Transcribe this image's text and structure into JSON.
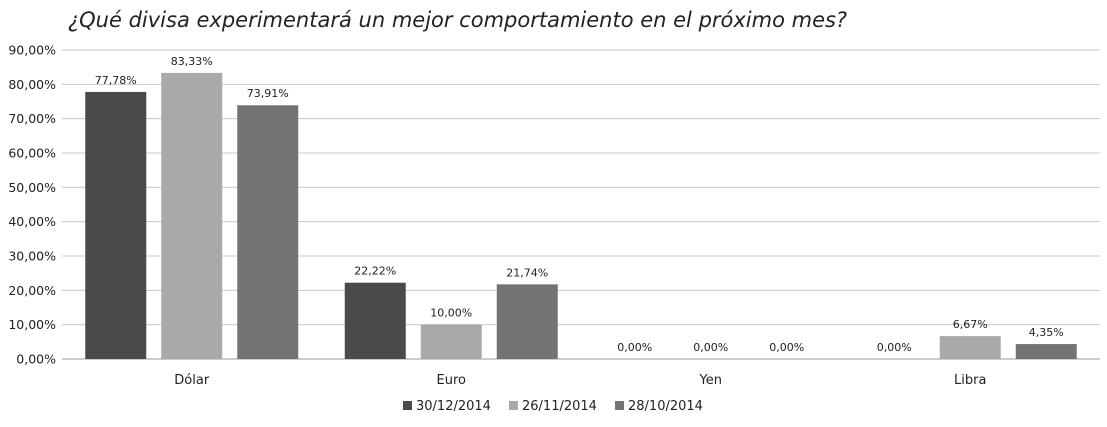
{
  "chart_data": {
    "type": "bar",
    "title": "¿Qué divisa experimentará un mejor comportamiento en el próximo mes?",
    "xlabel": "",
    "ylabel": "",
    "categories": [
      "Dólar",
      "Euro",
      "Yen",
      "Libra"
    ],
    "series": [
      {
        "name": "30/12/2014",
        "color": "#4a4a4a",
        "values": [
          77.78,
          22.22,
          0.0,
          0.0
        ],
        "labels": [
          "77,78%",
          "22,22%",
          "0,00%",
          "0,00%"
        ]
      },
      {
        "name": "26/11/2014",
        "color": "#a9a9a9",
        "values": [
          83.33,
          10.0,
          0.0,
          6.67
        ],
        "labels": [
          "83,33%",
          "10,00%",
          "0,00%",
          "6,67%"
        ]
      },
      {
        "name": "28/10/2014",
        "color": "#737373",
        "values": [
          73.91,
          21.74,
          0.0,
          4.35
        ],
        "labels": [
          "73,91%",
          "21,74%",
          "0,00%",
          "4,35%"
        ]
      }
    ],
    "ylim": [
      0,
      90
    ],
    "yticks": [
      0,
      10,
      20,
      30,
      40,
      50,
      60,
      70,
      80,
      90
    ],
    "ytick_labels": [
      "0,00%",
      "10,00%",
      "20,00%",
      "30,00%",
      "40,00%",
      "50,00%",
      "60,00%",
      "70,00%",
      "80,00%",
      "90,00%"
    ],
    "grid": true,
    "legend": "bottom"
  }
}
